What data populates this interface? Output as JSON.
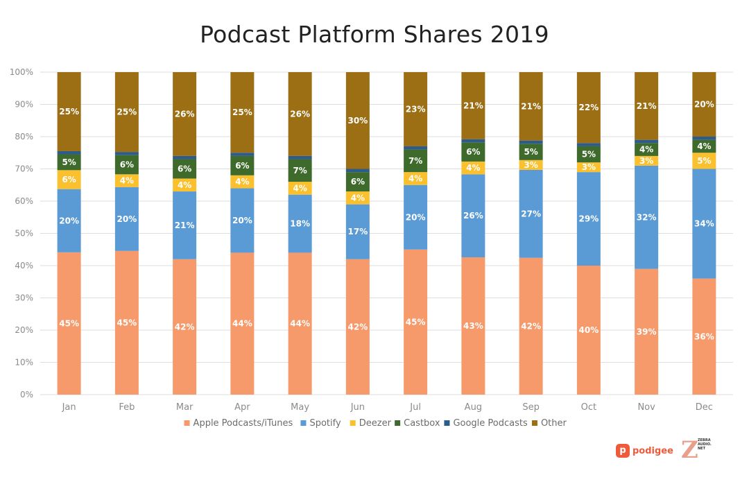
{
  "chart_data": {
    "type": "bar",
    "stacked": true,
    "title": "Podcast Platform Shares 2019",
    "categories": [
      "Jan",
      "Feb",
      "Mar",
      "Apr",
      "May",
      "Jun",
      "Jul",
      "Aug",
      "Sep",
      "Oct",
      "Nov",
      "Dec"
    ],
    "ylim": [
      0,
      100
    ],
    "yticks": [
      "0%",
      "10%",
      "20%",
      "30%",
      "40%",
      "50%",
      "60%",
      "70%",
      "80%",
      "90%",
      "100%"
    ],
    "grid": true,
    "legend_position": "bottom",
    "series": [
      {
        "name": "Apple Podcasts/iTunes",
        "color": "#f79a6b",
        "values": [
          45,
          45,
          42,
          44,
          44,
          42,
          45,
          43,
          42,
          40,
          39,
          36
        ],
        "labels": [
          "45%",
          "45%",
          "42%",
          "44%",
          "44%",
          "42%",
          "45%",
          "43%",
          "42%",
          "40%",
          "39%",
          "36%"
        ]
      },
      {
        "name": "Spotify",
        "color": "#5b9bd5",
        "values": [
          20,
          20,
          21,
          20,
          18,
          17,
          20,
          26,
          27,
          29,
          32,
          34
        ],
        "labels": [
          "20%",
          "20%",
          "21%",
          "20%",
          "18%",
          "17%",
          "20%",
          "26%",
          "27%",
          "29%",
          "32%",
          "34%"
        ]
      },
      {
        "name": "Deezer",
        "color": "#fbc02d",
        "values": [
          6,
          4,
          4,
          4,
          4,
          4,
          4,
          4,
          3,
          3,
          3,
          5
        ],
        "labels": [
          "6%",
          "4%",
          "4%",
          "4%",
          "4%",
          "4%",
          "4%",
          "4%",
          "3%",
          "3%",
          "3%",
          "5%"
        ]
      },
      {
        "name": "Castbox",
        "color": "#3e6b2c",
        "values": [
          5,
          6,
          6,
          6,
          7,
          6,
          7,
          6,
          5,
          5,
          4,
          4
        ],
        "labels": [
          "5%",
          "6%",
          "6%",
          "6%",
          "7%",
          "6%",
          "7%",
          "6%",
          "5%",
          "5%",
          "4%",
          "4%"
        ]
      },
      {
        "name": "Google Podcasts",
        "color": "#2e5c8a",
        "values": [
          1,
          1,
          1,
          1,
          1,
          1,
          1,
          1,
          1,
          1,
          1,
          1
        ],
        "labels": [
          "",
          "",
          "",
          "",
          "",
          "",
          "",
          "",
          "",
          "",
          "",
          ""
        ]
      },
      {
        "name": "Other",
        "color": "#9c6f14",
        "values": [
          25,
          25,
          26,
          25,
          26,
          30,
          23,
          21,
          21,
          22,
          21,
          20
        ],
        "labels": [
          "25%",
          "25%",
          "26%",
          "25%",
          "26%",
          "30%",
          "23%",
          "21%",
          "21%",
          "22%",
          "21%",
          "20%"
        ]
      }
    ]
  },
  "logos": {
    "podigee": "podigee",
    "zebra": "ZEBRA AUDIO. NET"
  }
}
